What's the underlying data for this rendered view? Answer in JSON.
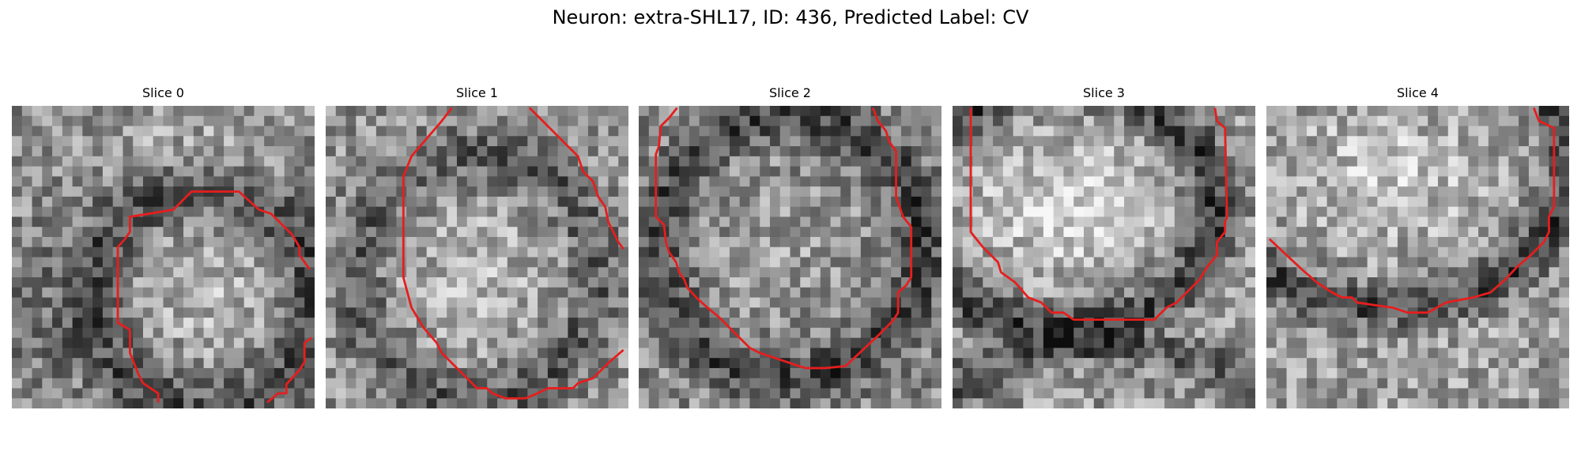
{
  "figure": {
    "title": "Neuron: extra-SHL17, ID: 436, Predicted Label: CV",
    "slices": [
      {
        "title": "Slice 0"
      },
      {
        "title": "Slice 1"
      },
      {
        "title": "Slice 2"
      },
      {
        "title": "Slice 3"
      },
      {
        "title": "Slice 4"
      }
    ]
  },
  "colors": {
    "contour": "#e61e1e",
    "background": "#ffffff"
  }
}
